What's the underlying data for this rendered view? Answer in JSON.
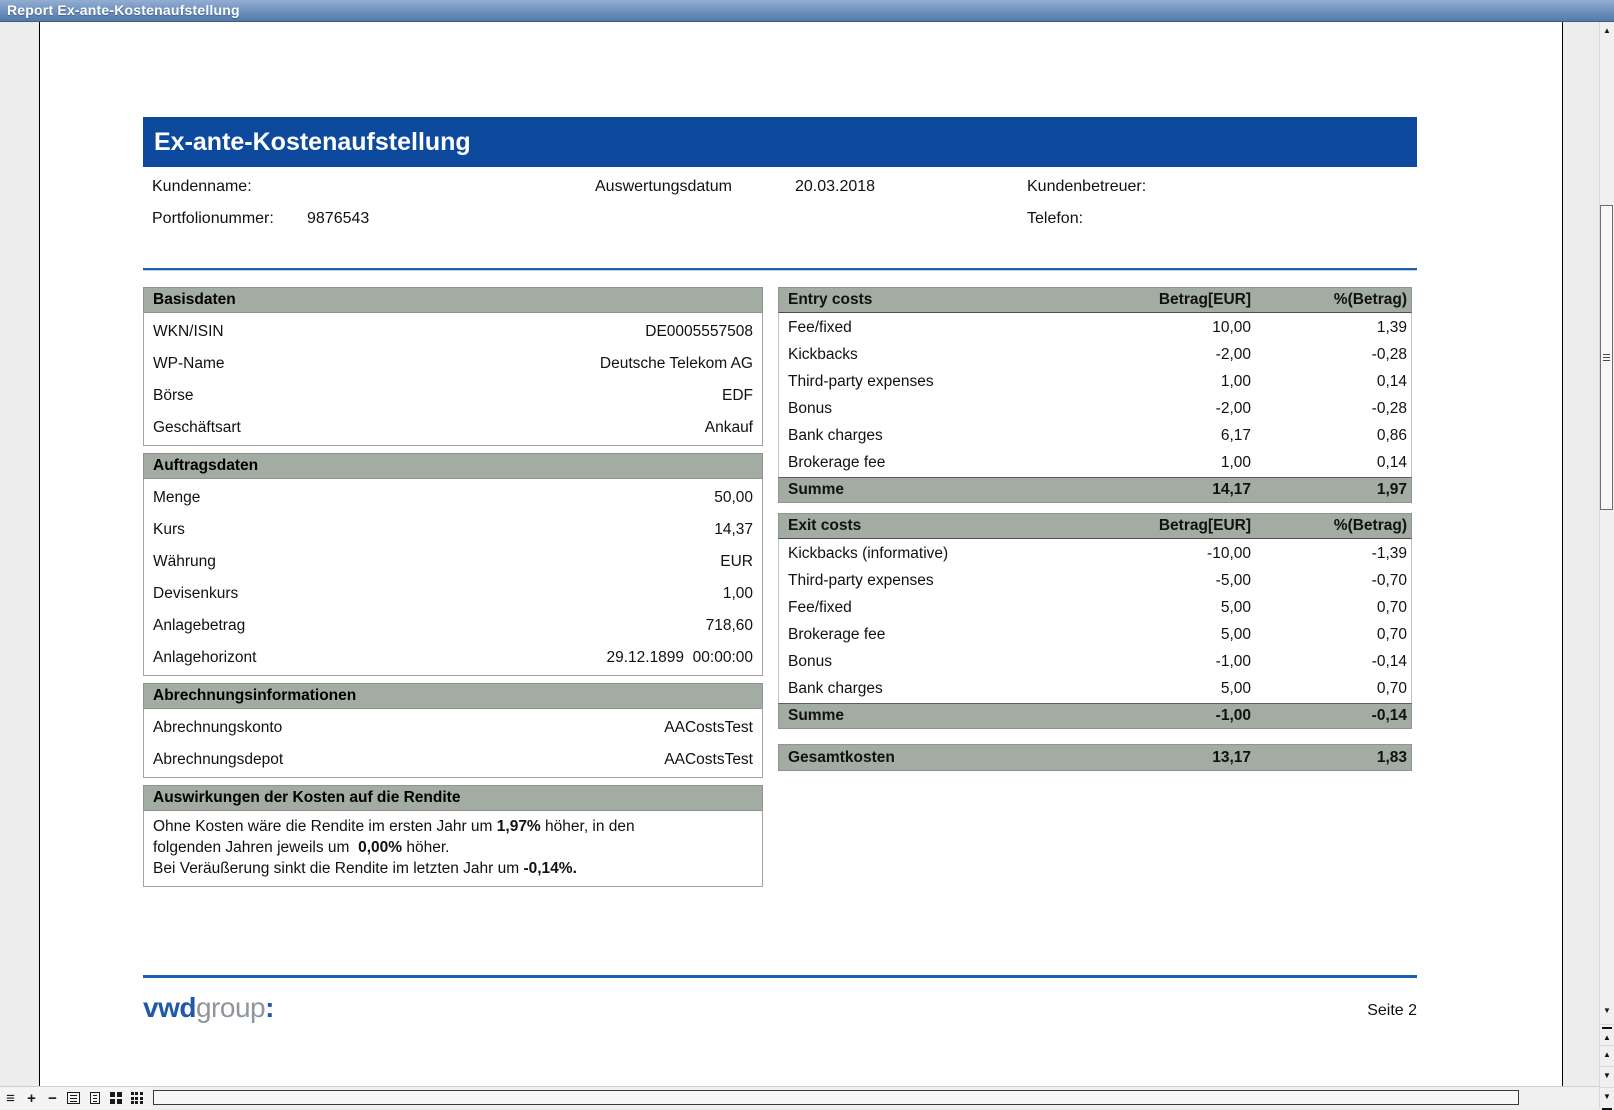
{
  "window": {
    "title": "Report Ex-ante-Kostenaufstellung"
  },
  "report": {
    "banner_title": "Ex-ante-Kostenaufstellung",
    "meta": {
      "kundenname_label": "Kundenname:",
      "auswertungsdatum_label": "Auswertungsdatum",
      "auswertungsdatum_value": "20.03.2018",
      "kundenbetreuer_label": "Kundenbetreuer:",
      "portfolionummer_label": "Portfolionummer:",
      "portfolionummer_value": "9876543",
      "telefon_label": "Telefon:"
    },
    "left_tables": [
      {
        "title": "Basisdaten",
        "rows": [
          {
            "label": "WKN/ISIN",
            "value": "DE0005557508"
          },
          {
            "label": "WP-Name",
            "value": "Deutsche Telekom AG"
          },
          {
            "label": "Börse",
            "value": "EDF"
          },
          {
            "label": "Geschäftsart",
            "value": "Ankauf"
          }
        ]
      },
      {
        "title": "Auftragsdaten",
        "rows": [
          {
            "label": "Menge",
            "value": "50,00"
          },
          {
            "label": "Kurs",
            "value": "14,37"
          },
          {
            "label": "Währung",
            "value": "EUR"
          },
          {
            "label": "Devisenkurs",
            "value": "1,00"
          },
          {
            "label": "Anlagebetrag",
            "value": "718,60"
          },
          {
            "label": "Anlagehorizont",
            "value": "29.12.1899  00:00:00"
          }
        ]
      },
      {
        "title": "Abrechnungsinformationen",
        "rows": [
          {
            "label": "Abrechnungskonto",
            "value": "AACostsTest"
          },
          {
            "label": "Abrechnungsdepot",
            "value": "AACostsTest"
          }
        ]
      }
    ],
    "rendite_box": {
      "title": "Auswirkungen der Kosten auf die Rendite",
      "lines": [
        [
          {
            "text": "Ohne Kosten wäre die Rendite im ersten Jahr um ",
            "bold": false
          },
          {
            "text": "1,97%",
            "bold": true
          },
          {
            "text": " höher, in den",
            "bold": false
          }
        ],
        [
          {
            "text": "folgenden Jahren jeweils um  ",
            "bold": false
          },
          {
            "text": "0,00%",
            "bold": true
          },
          {
            "text": " höher.",
            "bold": false
          }
        ],
        [
          {
            "text": "Bei Veräußerung sinkt die Rendite im letzten Jahr um ",
            "bold": false
          },
          {
            "text": "-0,14%.",
            "bold": true
          }
        ]
      ]
    },
    "cost_tables": [
      {
        "title": "Entry costs",
        "col_amount": "Betrag[EUR]",
        "col_pct": "%(Betrag)",
        "rows": [
          {
            "label": "Fee/fixed",
            "amount": "10,00",
            "pct": "1,39"
          },
          {
            "label": "Kickbacks",
            "amount": "-2,00",
            "pct": "-0,28"
          },
          {
            "label": "Third-party expenses",
            "amount": "1,00",
            "pct": "0,14"
          },
          {
            "label": "Bonus",
            "amount": "-2,00",
            "pct": "-0,28"
          },
          {
            "label": "Bank charges",
            "amount": "6,17",
            "pct": "0,86"
          },
          {
            "label": "Brokerage fee",
            "amount": "1,00",
            "pct": "0,14"
          }
        ],
        "sum": {
          "label": "Summe",
          "amount": "14,17",
          "pct": "1,97"
        }
      },
      {
        "title": "Exit costs",
        "col_amount": "Betrag[EUR]",
        "col_pct": "%(Betrag)",
        "rows": [
          {
            "label": "Kickbacks (informative)",
            "amount": "-10,00",
            "pct": "-1,39"
          },
          {
            "label": "Third-party expenses",
            "amount": "-5,00",
            "pct": "-0,70"
          },
          {
            "label": "Fee/fixed",
            "amount": "5,00",
            "pct": "0,70"
          },
          {
            "label": "Brokerage fee",
            "amount": "5,00",
            "pct": "0,70"
          },
          {
            "label": "Bonus",
            "amount": "-1,00",
            "pct": "-0,14"
          },
          {
            "label": "Bank charges",
            "amount": "5,00",
            "pct": "0,70"
          }
        ],
        "sum": {
          "label": "Summe",
          "amount": "-1,00",
          "pct": "-0,14"
        }
      }
    ],
    "total_row": {
      "label": "Gesamtkosten",
      "amount": "13,17",
      "pct": "1,83"
    },
    "footer": {
      "logo_vwd": "vwd",
      "logo_group": "group",
      "logo_colon": ":",
      "page_label": "Seite 2"
    }
  },
  "toolbar": {
    "icons": [
      "menu-icon",
      "zoom-in-icon",
      "zoom-out-icon",
      "page-width-view-icon",
      "whole-page-view-icon",
      "two-pages-view-icon",
      "page-grid-view-icon"
    ],
    "zoom_in_glyph": "+",
    "zoom_out_glyph": "−",
    "menu_glyph": "≡"
  },
  "scrollbar": {
    "up_glyph": "▲",
    "down_glyph": "▼",
    "nav_buttons": [
      "first-page-button",
      "prev-page-button",
      "next-page-button",
      "last-page-button"
    ]
  },
  "colors": {
    "banner_blue": "#0D4A9E",
    "divider_blue": "#1C5EB0",
    "table_header_gray": "#A3ACA3",
    "titlebar_blue": "#5379AC",
    "logo_blue": "#1E5AA9",
    "logo_gray": "#8F959C"
  }
}
